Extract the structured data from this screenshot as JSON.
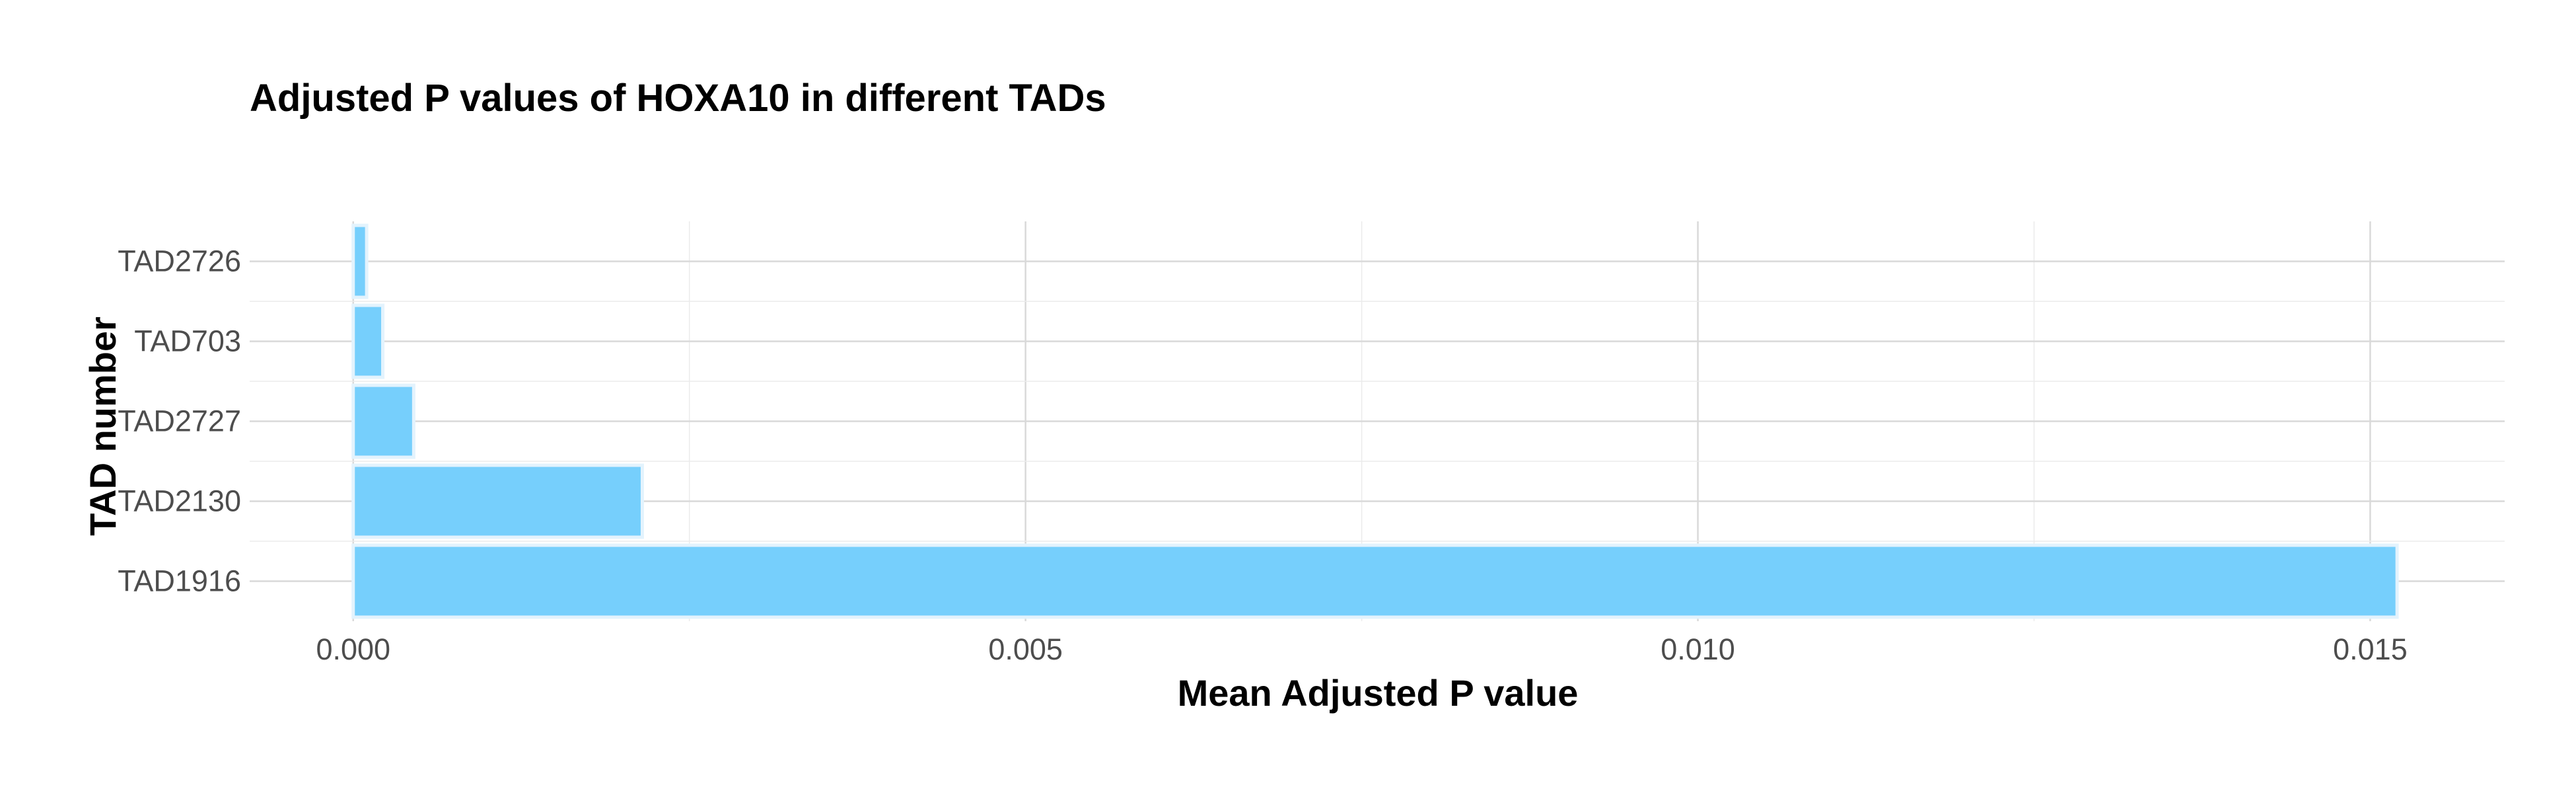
{
  "chart_data": {
    "type": "bar",
    "orientation": "horizontal",
    "title": "Adjusted P values of HOXA10 in different TADs",
    "xlabel": "Mean Adjusted P value",
    "ylabel": "TAD number",
    "categories": [
      "TAD1916",
      "TAD2130",
      "TAD2727",
      "TAD703",
      "TAD2726"
    ],
    "values": [
      0.0152,
      0.00215,
      0.00045,
      0.00022,
      0.0001
    ],
    "xlim": [
      -0.00077,
      0.016
    ],
    "xticks": [
      0,
      0.005,
      0.01,
      0.015
    ],
    "xtick_labels": [
      "0.000",
      "0.005",
      "0.010",
      "0.015"
    ],
    "grid": true,
    "legend": "none",
    "bar_color": "#76CFFC",
    "bar_edge_color": "#E3F3FD"
  }
}
